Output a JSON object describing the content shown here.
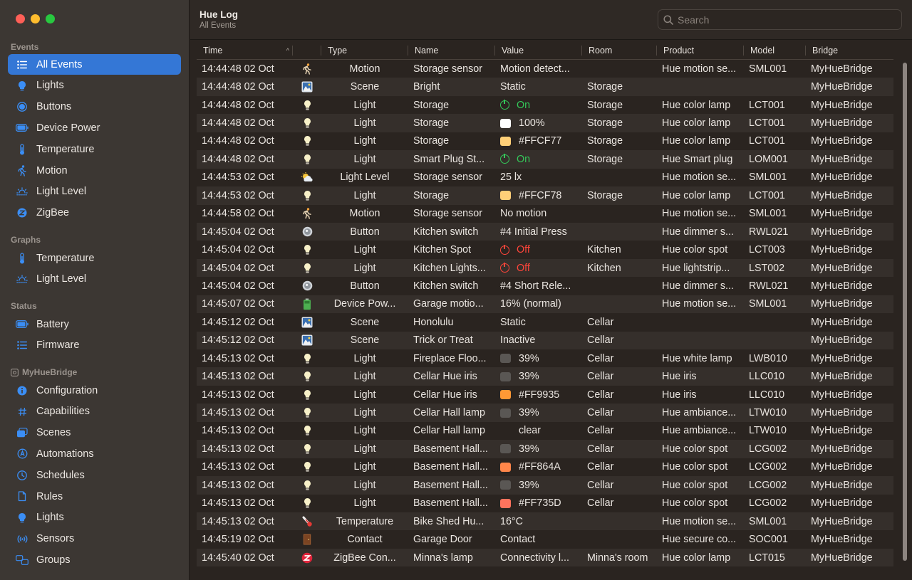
{
  "window": {
    "title": "Hue Log",
    "subtitle": "All Events"
  },
  "search": {
    "placeholder": "Search"
  },
  "sidebar": {
    "sections": [
      {
        "title": "Events",
        "items": [
          {
            "label": "All Events",
            "icon": "list-icon",
            "selected": true
          },
          {
            "label": "Lights",
            "icon": "bulb-icon"
          },
          {
            "label": "Buttons",
            "icon": "button-icon"
          },
          {
            "label": "Device Power",
            "icon": "battery-icon"
          },
          {
            "label": "Temperature",
            "icon": "thermometer-icon"
          },
          {
            "label": "Motion",
            "icon": "motion-icon"
          },
          {
            "label": "Light Level",
            "icon": "sunrise-icon"
          },
          {
            "label": "ZigBee",
            "icon": "zigbee-icon"
          }
        ]
      },
      {
        "title": "Graphs",
        "items": [
          {
            "label": "Temperature",
            "icon": "thermometer-icon"
          },
          {
            "label": "Light Level",
            "icon": "sunrise-icon"
          }
        ]
      },
      {
        "title": "Status",
        "items": [
          {
            "label": "Battery",
            "icon": "battery-icon"
          },
          {
            "label": "Firmware",
            "icon": "list-icon"
          }
        ]
      },
      {
        "title": "MyHueBridge",
        "items": [
          {
            "label": "Configuration",
            "icon": "info-icon"
          },
          {
            "label": "Capabilities",
            "icon": "hash-icon"
          },
          {
            "label": "Scenes",
            "icon": "scenes-icon"
          },
          {
            "label": "Automations",
            "icon": "automation-icon"
          },
          {
            "label": "Schedules",
            "icon": "clock-icon"
          },
          {
            "label": "Rules",
            "icon": "doc-icon"
          },
          {
            "label": "Lights",
            "icon": "bulb-icon"
          },
          {
            "label": "Sensors",
            "icon": "sensor-icon"
          },
          {
            "label": "Groups",
            "icon": "groups-icon"
          }
        ]
      }
    ]
  },
  "table": {
    "columns": [
      "Time",
      "",
      "Type",
      "Name",
      "Value",
      "Room",
      "Product",
      "Model",
      "Bridge"
    ],
    "sort_indicator": "^",
    "rows": [
      {
        "time": "14:44:48 02 Oct",
        "icon": "motion",
        "type": "Motion",
        "name": "Storage sensor",
        "value": "Motion detect...",
        "value_kind": "text",
        "room": "",
        "product": "Hue motion se...",
        "model": "SML001",
        "bridge": "MyHueBridge"
      },
      {
        "time": "14:44:48 02 Oct",
        "icon": "scene",
        "type": "Scene",
        "name": "Bright",
        "value": "Static",
        "value_kind": "text",
        "room": "Storage",
        "product": "",
        "model": "",
        "bridge": "MyHueBridge"
      },
      {
        "time": "14:44:48 02 Oct",
        "icon": "light",
        "type": "Light",
        "name": "Storage",
        "value": "On",
        "value_kind": "on",
        "room": "Storage",
        "product": "Hue color lamp",
        "model": "LCT001",
        "bridge": "MyHueBridge"
      },
      {
        "time": "14:44:48 02 Oct",
        "icon": "light",
        "type": "Light",
        "name": "Storage",
        "value": "100%",
        "value_kind": "swatch",
        "swatch": "#FFFFFF",
        "room": "Storage",
        "product": "Hue color lamp",
        "model": "LCT001",
        "bridge": "MyHueBridge"
      },
      {
        "time": "14:44:48 02 Oct",
        "icon": "light",
        "type": "Light",
        "name": "Storage",
        "value": "#FFCF77",
        "value_kind": "swatch",
        "swatch": "#FFCF77",
        "room": "Storage",
        "product": "Hue color lamp",
        "model": "LCT001",
        "bridge": "MyHueBridge"
      },
      {
        "time": "14:44:48 02 Oct",
        "icon": "light",
        "type": "Light",
        "name": "Smart Plug St...",
        "value": "On",
        "value_kind": "on",
        "room": "Storage",
        "product": "Hue Smart plug",
        "model": "LOM001",
        "bridge": "MyHueBridge"
      },
      {
        "time": "14:44:53 02 Oct",
        "icon": "lightlevel",
        "type": "Light Level",
        "name": "Storage sensor",
        "value": "25 lx",
        "value_kind": "text",
        "room": "",
        "product": "Hue motion se...",
        "model": "SML001",
        "bridge": "MyHueBridge"
      },
      {
        "time": "14:44:53 02 Oct",
        "icon": "light",
        "type": "Light",
        "name": "Storage",
        "value": "#FFCF78",
        "value_kind": "swatch",
        "swatch": "#FFCF78",
        "room": "Storage",
        "product": "Hue color lamp",
        "model": "LCT001",
        "bridge": "MyHueBridge"
      },
      {
        "time": "14:44:58 02 Oct",
        "icon": "motion",
        "type": "Motion",
        "name": "Storage sensor",
        "value": "No motion",
        "value_kind": "text",
        "room": "",
        "product": "Hue motion se...",
        "model": "SML001",
        "bridge": "MyHueBridge"
      },
      {
        "time": "14:45:04 02 Oct",
        "icon": "button",
        "type": "Button",
        "name": "Kitchen switch",
        "value": "#4 Initial Press",
        "value_kind": "text",
        "room": "",
        "product": "Hue dimmer s...",
        "model": "RWL021",
        "bridge": "MyHueBridge"
      },
      {
        "time": "14:45:04 02 Oct",
        "icon": "light",
        "type": "Light",
        "name": "Kitchen Spot",
        "value": "Off",
        "value_kind": "off",
        "room": "Kitchen",
        "product": "Hue color spot",
        "model": "LCT003",
        "bridge": "MyHueBridge"
      },
      {
        "time": "14:45:04 02 Oct",
        "icon": "light",
        "type": "Light",
        "name": "Kitchen Lights...",
        "value": "Off",
        "value_kind": "off",
        "room": "Kitchen",
        "product": "Hue lightstrip...",
        "model": "LST002",
        "bridge": "MyHueBridge"
      },
      {
        "time": "14:45:04 02 Oct",
        "icon": "button",
        "type": "Button",
        "name": "Kitchen switch",
        "value": "#4 Short Rele...",
        "value_kind": "text",
        "room": "",
        "product": "Hue dimmer s...",
        "model": "RWL021",
        "bridge": "MyHueBridge"
      },
      {
        "time": "14:45:07 02 Oct",
        "icon": "battery",
        "type": "Device Pow...",
        "name": "Garage motio...",
        "value": "16% (normal)",
        "value_kind": "text",
        "room": "",
        "product": "Hue motion se...",
        "model": "SML001",
        "bridge": "MyHueBridge"
      },
      {
        "time": "14:45:12 02 Oct",
        "icon": "scene",
        "type": "Scene",
        "name": "Honolulu",
        "value": "Static",
        "value_kind": "text",
        "room": "Cellar",
        "product": "",
        "model": "",
        "bridge": "MyHueBridge"
      },
      {
        "time": "14:45:12 02 Oct",
        "icon": "scene",
        "type": "Scene",
        "name": "Trick or Treat",
        "value": "Inactive",
        "value_kind": "text",
        "room": "Cellar",
        "product": "",
        "model": "",
        "bridge": "MyHueBridge"
      },
      {
        "time": "14:45:13 02 Oct",
        "icon": "light",
        "type": "Light",
        "name": "Fireplace Floo...",
        "value": "39%",
        "value_kind": "swatch",
        "swatch": "#5A5754",
        "room": "Cellar",
        "product": "Hue white lamp",
        "model": "LWB010",
        "bridge": "MyHueBridge"
      },
      {
        "time": "14:45:13 02 Oct",
        "icon": "light",
        "type": "Light",
        "name": "Cellar Hue iris",
        "value": "39%",
        "value_kind": "swatch",
        "swatch": "#5A5754",
        "room": "Cellar",
        "product": "Hue iris",
        "model": "LLC010",
        "bridge": "MyHueBridge"
      },
      {
        "time": "14:45:13 02 Oct",
        "icon": "light",
        "type": "Light",
        "name": "Cellar Hue iris",
        "value": "#FF9935",
        "value_kind": "swatch",
        "swatch": "#FF9935",
        "room": "Cellar",
        "product": "Hue iris",
        "model": "LLC010",
        "bridge": "MyHueBridge"
      },
      {
        "time": "14:45:13 02 Oct",
        "icon": "light",
        "type": "Light",
        "name": "Cellar Hall lamp",
        "value": "39%",
        "value_kind": "swatch",
        "swatch": "#5A5754",
        "room": "Cellar",
        "product": "Hue ambiance...",
        "model": "LTW010",
        "bridge": "MyHueBridge"
      },
      {
        "time": "14:45:13 02 Oct",
        "icon": "light",
        "type": "Light",
        "name": "Cellar Hall lamp",
        "value": "clear",
        "value_kind": "blank",
        "room": "Cellar",
        "product": "Hue ambiance...",
        "model": "LTW010",
        "bridge": "MyHueBridge"
      },
      {
        "time": "14:45:13 02 Oct",
        "icon": "light",
        "type": "Light",
        "name": "Basement Hall...",
        "value": "39%",
        "value_kind": "swatch",
        "swatch": "#5A5754",
        "room": "Cellar",
        "product": "Hue color spot",
        "model": "LCG002",
        "bridge": "MyHueBridge"
      },
      {
        "time": "14:45:13 02 Oct",
        "icon": "light",
        "type": "Light",
        "name": "Basement Hall...",
        "value": "#FF864A",
        "value_kind": "swatch",
        "swatch": "#FF864A",
        "room": "Cellar",
        "product": "Hue color spot",
        "model": "LCG002",
        "bridge": "MyHueBridge"
      },
      {
        "time": "14:45:13 02 Oct",
        "icon": "light",
        "type": "Light",
        "name": "Basement Hall...",
        "value": "39%",
        "value_kind": "swatch",
        "swatch": "#5A5754",
        "room": "Cellar",
        "product": "Hue color spot",
        "model": "LCG002",
        "bridge": "MyHueBridge"
      },
      {
        "time": "14:45:13 02 Oct",
        "icon": "light",
        "type": "Light",
        "name": "Basement Hall...",
        "value": "#FF735D",
        "value_kind": "swatch",
        "swatch": "#FF735D",
        "room": "Cellar",
        "product": "Hue color spot",
        "model": "LCG002",
        "bridge": "MyHueBridge"
      },
      {
        "time": "14:45:13 02 Oct",
        "icon": "temperature",
        "type": "Temperature",
        "name": "Bike Shed Hu...",
        "value": "16°C",
        "value_kind": "text",
        "room": "",
        "product": "Hue motion se...",
        "model": "SML001",
        "bridge": "MyHueBridge"
      },
      {
        "time": "14:45:19 02 Oct",
        "icon": "contact",
        "type": "Contact",
        "name": "Garage Door",
        "value": "Contact",
        "value_kind": "text",
        "room": "",
        "product": "Hue secure co...",
        "model": "SOC001",
        "bridge": "MyHueBridge"
      },
      {
        "time": "14:45:40 02 Oct",
        "icon": "zigbee",
        "type": "ZigBee Con...",
        "name": "Minna's lamp",
        "value": "Connectivity l...",
        "value_kind": "text",
        "room": "Minna's room",
        "product": "Hue color lamp",
        "model": "LCT015",
        "bridge": "MyHueBridge"
      }
    ]
  },
  "colors": {
    "accent": "#3477d6",
    "on": "#34c759",
    "off": "#ff453a",
    "icon_blue": "#3b8ef5"
  }
}
